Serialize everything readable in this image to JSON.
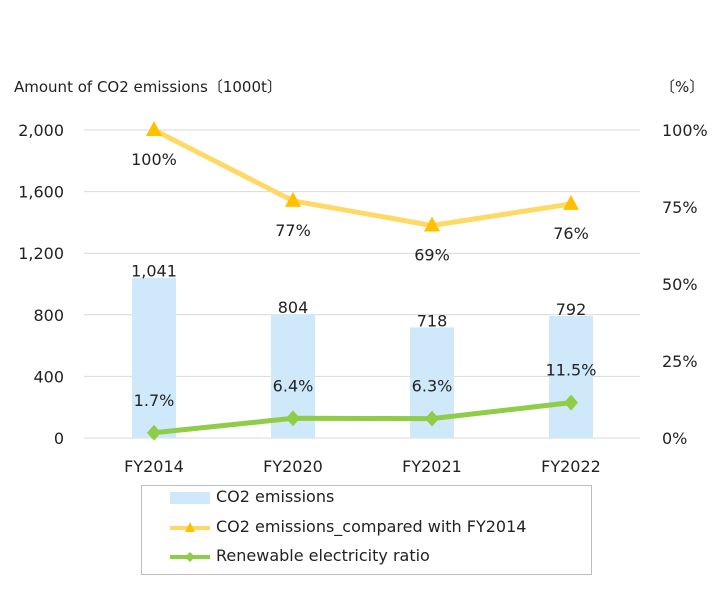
{
  "chart_data": {
    "type": "bar+line",
    "categories": [
      "FY2014",
      "FY2020",
      "FY2021",
      "FY2022"
    ],
    "y_left": {
      "title": "Amount of CO2 emissions〔1000t〕",
      "ticks": [
        "2,000",
        "1,600",
        "1,200",
        "800",
        "400",
        "0"
      ],
      "tick_values": [
        2000,
        1600,
        1200,
        800,
        400,
        0
      ],
      "range": [
        0,
        2000
      ]
    },
    "y_right": {
      "title": "〔%〕",
      "ticks": [
        "100%",
        "75%",
        "50%",
        "25%",
        "0%"
      ],
      "tick_values": [
        100,
        75,
        50,
        25,
        0
      ],
      "range": [
        0,
        100
      ]
    },
    "series": [
      {
        "name": "CO2 emissions",
        "kind": "bar",
        "axis": "left",
        "color": "#cfe9fb",
        "values": [
          1041,
          804,
          718,
          792
        ],
        "labels": [
          "1,041",
          "804",
          "718",
          "792"
        ]
      },
      {
        "name": "CO2 emissions_compared with FY2014",
        "kind": "line",
        "axis": "right",
        "marker": "triangle",
        "color": "#ffd966",
        "marker_color": "#ffc000",
        "values": [
          100,
          77,
          69,
          76
        ],
        "labels": [
          "100%",
          "77%",
          "69%",
          "76%"
        ]
      },
      {
        "name": "Renewable electricity ratio",
        "kind": "line",
        "axis": "right",
        "marker": "diamond",
        "color": "#8fcc47",
        "marker_color": "#8fcc47",
        "values": [
          1.7,
          6.4,
          6.3,
          11.5
        ],
        "labels": [
          "1.7%",
          "6.4%",
          "6.3%",
          "11.5%"
        ]
      }
    ],
    "grid": true,
    "legend_position": "bottom"
  }
}
